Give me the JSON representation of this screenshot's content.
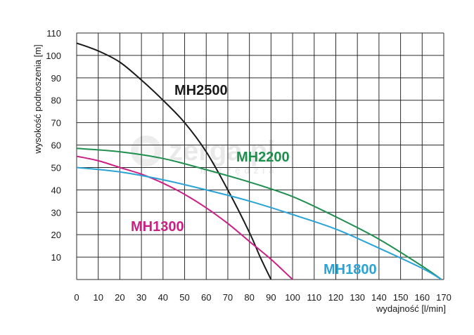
{
  "chart_data": {
    "type": "line",
    "xlabel": "wydajność [l/min]",
    "ylabel": "wysokość podnoszenia [m]",
    "xlim": [
      0,
      170
    ],
    "ylim": [
      0,
      110
    ],
    "x_ticks": [
      0,
      10,
      20,
      30,
      40,
      50,
      60,
      70,
      80,
      90,
      100,
      110,
      120,
      130,
      140,
      150,
      160,
      170
    ],
    "y_ticks": [
      10,
      20,
      30,
      40,
      50,
      60,
      70,
      80,
      90,
      100,
      110
    ],
    "grid": true,
    "series": [
      {
        "name": "MH2500",
        "color": "#1a1a1a",
        "x": [
          0,
          10,
          20,
          30,
          40,
          50,
          60,
          70,
          80,
          85,
          90
        ],
        "y": [
          105.5,
          102,
          97,
          89,
          80,
          70,
          57,
          40,
          21,
          10,
          0
        ]
      },
      {
        "name": "MH2200",
        "color": "#1f8f4e",
        "x": [
          0,
          20,
          40,
          60,
          80,
          100,
          120,
          140,
          160,
          169
        ],
        "y": [
          58.5,
          57,
          54,
          49,
          43.5,
          37,
          28,
          18,
          6,
          0
        ]
      },
      {
        "name": "MH1300",
        "color": "#cc1f85",
        "x": [
          0,
          10,
          20,
          30,
          40,
          50,
          60,
          70,
          80,
          90,
          100
        ],
        "y": [
          55,
          53,
          50,
          47,
          43,
          38,
          32,
          25,
          17,
          9,
          0
        ]
      },
      {
        "name": "MH1800",
        "color": "#2aa3d6",
        "x": [
          0,
          20,
          40,
          60,
          80,
          100,
          120,
          140,
          160,
          169
        ],
        "y": [
          50,
          48,
          44.5,
          40,
          35,
          29,
          22.5,
          14,
          5,
          0
        ]
      }
    ]
  },
  "watermark": {
    "brand": "zerga.pl",
    "sub": "narzędzia"
  }
}
